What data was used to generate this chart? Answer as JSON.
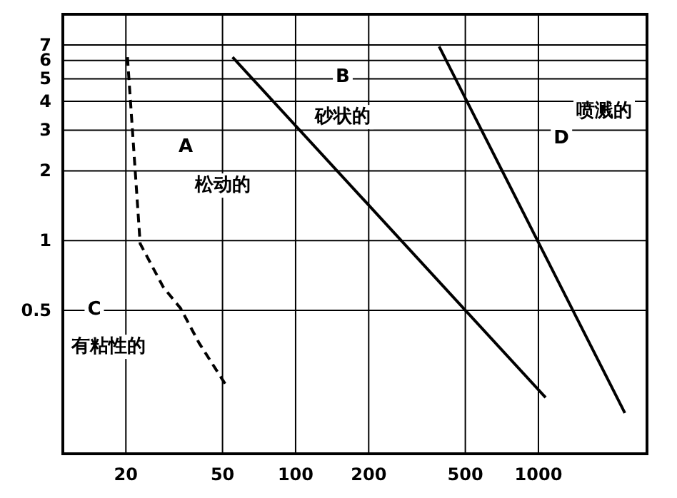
{
  "chart_data": {
    "type": "line",
    "log": "xy",
    "xlim": [
      11,
      2800
    ],
    "ylim": [
      0.12,
      9.5
    ],
    "xticks": [
      20,
      50,
      100,
      200,
      500,
      1000
    ],
    "yticks": [
      0.5,
      1,
      2,
      3,
      4,
      5,
      6,
      7
    ],
    "grid": true,
    "marker": "none",
    "series": [
      {
        "color": "#000000",
        "x": [
          55,
          1070
        ],
        "values": [
          6.2,
          0.21
        ]
      },
      {
        "color": "#000000",
        "x": [
          390,
          2270
        ],
        "values": [
          6.9,
          0.18
        ]
      },
      {
        "color": "#000000",
        "line_style": "dashed",
        "x": [
          20.3,
          22.9,
          28.5,
          33.6,
          40.1,
          52.7
        ],
        "values": [
          6.2,
          0.97,
          0.63,
          0.51,
          0.36,
          0.23
        ]
      }
    ],
    "annotations": [
      "A",
      "松动的",
      "B",
      "砂状的",
      "D",
      "喷溅的",
      "C",
      "有粘性的"
    ]
  }
}
